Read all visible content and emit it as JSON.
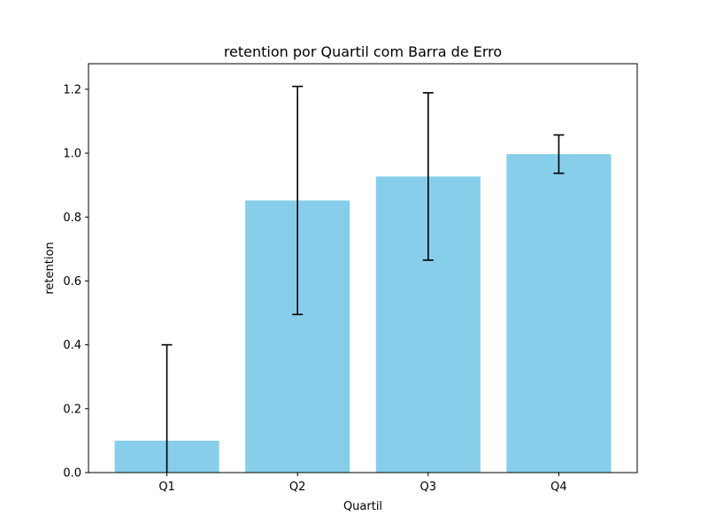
{
  "chart_data": {
    "type": "bar",
    "title": "retention por Quartil com Barra de Erro",
    "xlabel": "Quartil",
    "ylabel": "retention",
    "categories": [
      "Q1",
      "Q2",
      "Q3",
      "Q4"
    ],
    "values": [
      0.1,
      0.852,
      0.927,
      0.997
    ],
    "errors": [
      0.3,
      0.357,
      0.262,
      0.06
    ],
    "ylim": [
      0,
      1.28
    ],
    "yticks": [
      "0.0",
      "0.2",
      "0.4",
      "0.6",
      "0.8",
      "1.0",
      "1.2"
    ],
    "bar_color": "#87ceeb",
    "error_color": "#000000",
    "grid": false,
    "legend": "none"
  }
}
